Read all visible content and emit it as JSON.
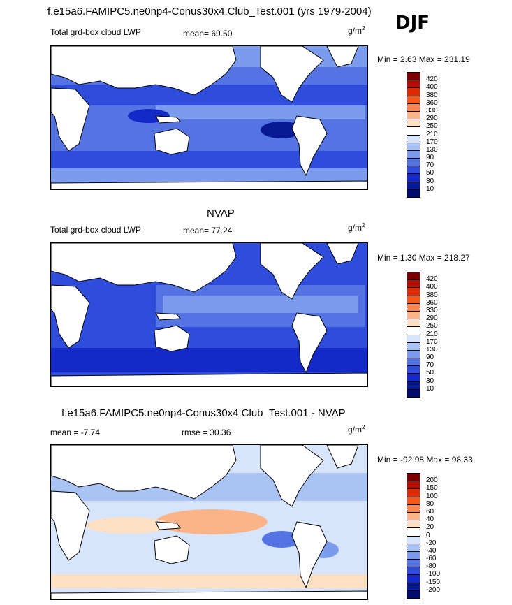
{
  "main_title": "f.e15a6.FAMIPC5.ne0np4-Conus30x4.Club_Test.001 (yrs 1979-2004)",
  "season": "DJF",
  "panels": [
    {
      "title": "",
      "label": "Total grd-box cloud LWP",
      "stat_text": "mean=  69.50",
      "units_base": "g/m",
      "units_sup": "2",
      "minmax": "Min =   2.63 Max = 231.19",
      "levels": [
        "420",
        "400",
        "380",
        "360",
        "330",
        "290",
        "250",
        "210",
        "170",
        "130",
        "90",
        "70",
        "50",
        "30",
        "10"
      ],
      "colors": [
        "#7a0000",
        "#b30f00",
        "#dd2c00",
        "#f25a1b",
        "#f98751",
        "#fbb388",
        "#fddfc3",
        "#ffffff",
        "#d6e5fb",
        "#a9c3f5",
        "#7b9ced",
        "#5474e4",
        "#2e4ddb",
        "#1329c8",
        "#071a94",
        "#000b6b"
      ]
    },
    {
      "title": "NVAP",
      "label": "Total grd-box cloud LWP",
      "stat_text": "mean=  77.24",
      "units_base": "g/m",
      "units_sup": "2",
      "minmax": "Min =   1.30 Max = 218.27",
      "levels": [
        "420",
        "400",
        "380",
        "360",
        "330",
        "290",
        "250",
        "210",
        "170",
        "130",
        "90",
        "70",
        "50",
        "30",
        "10"
      ],
      "colors": [
        "#7a0000",
        "#b30f00",
        "#dd2c00",
        "#f25a1b",
        "#f98751",
        "#fbb388",
        "#fddfc3",
        "#ffffff",
        "#d6e5fb",
        "#a9c3f5",
        "#7b9ced",
        "#5474e4",
        "#2e4ddb",
        "#1329c8",
        "#071a94",
        "#000b6b"
      ]
    },
    {
      "title": "f.e15a6.FAMIPC5.ne0np4-Conus30x4.Club_Test.001 - NVAP",
      "mean_text": "mean =  -7.74",
      "rmse_text": "rmse =  30.36",
      "units_base": "g/m",
      "units_sup": "2",
      "minmax": "Min = -92.98 Max =  98.33",
      "levels": [
        "200",
        "150",
        "100",
        "80",
        "60",
        "40",
        "20",
        "0",
        "-20",
        "-40",
        "-60",
        "-80",
        "-100",
        "-150",
        "-200"
      ],
      "colors": [
        "#7a0000",
        "#b30f00",
        "#dd2c00",
        "#f25a1b",
        "#f98751",
        "#fbb388",
        "#fddfc3",
        "#ffffff",
        "#d6e5fb",
        "#a9c3f5",
        "#7b9ced",
        "#5474e4",
        "#2e4ddb",
        "#1329c8",
        "#071a94",
        "#000b6b"
      ]
    }
  ]
}
